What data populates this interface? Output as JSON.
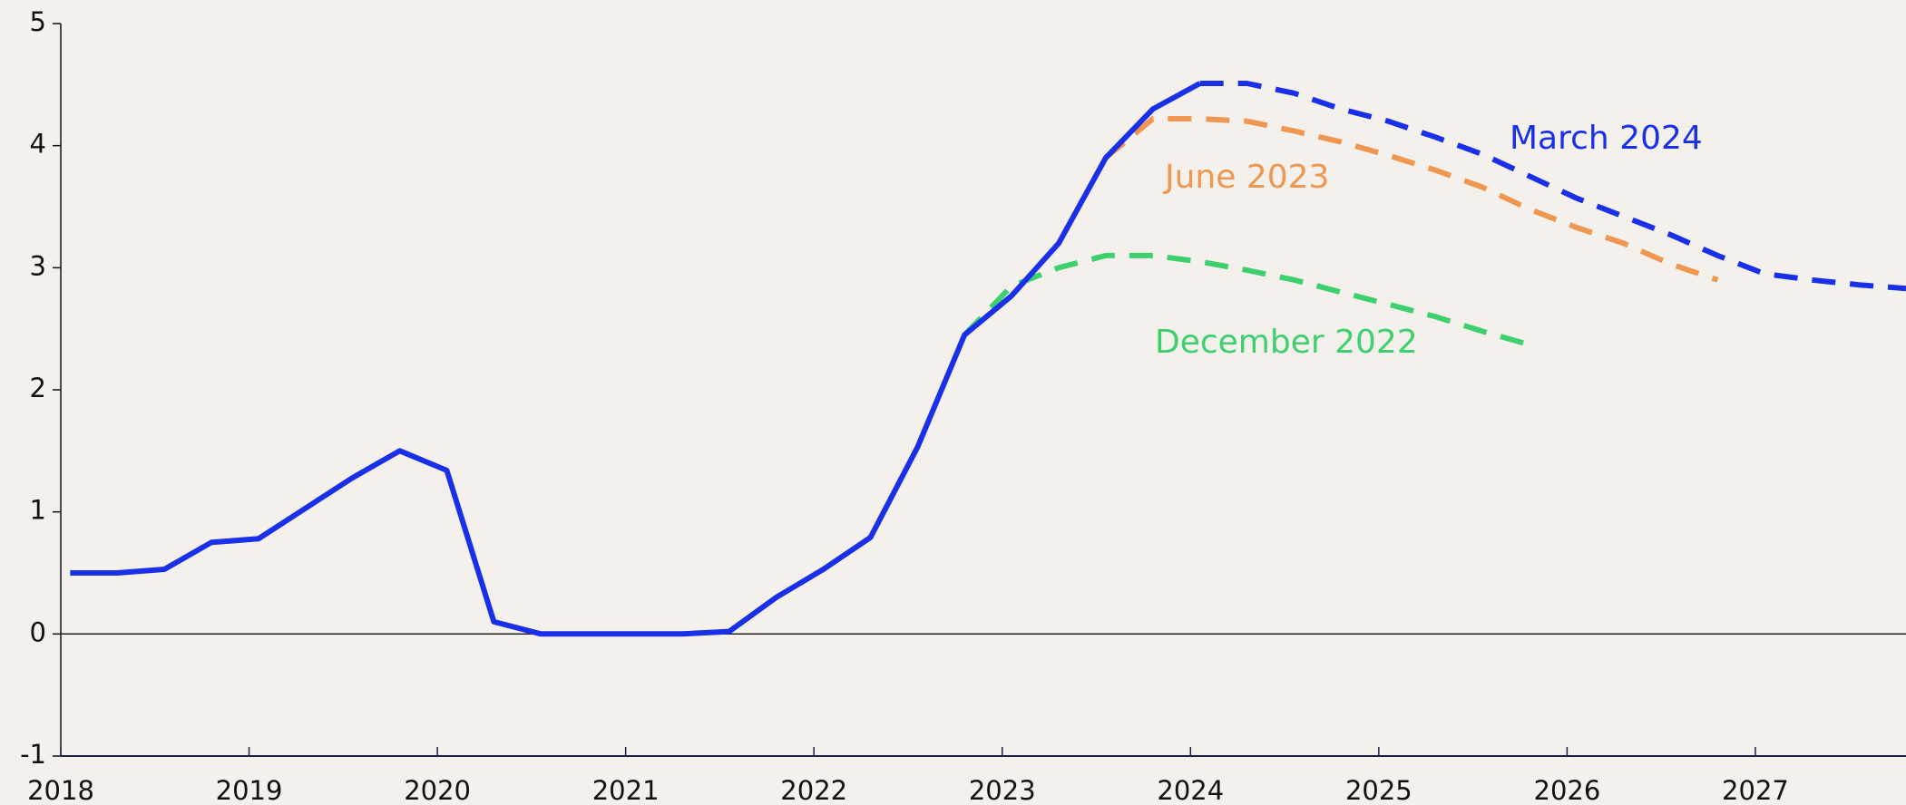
{
  "chart_data": {
    "type": "line",
    "x": [
      2018.05,
      2018.3,
      2018.55,
      2018.8,
      2019.05,
      2019.3,
      2019.55,
      2019.8,
      2020.05,
      2020.3,
      2020.55,
      2020.8,
      2021.05,
      2021.3,
      2021.55,
      2021.8,
      2022.05,
      2022.3,
      2022.55,
      2022.8,
      2023.05,
      2023.3,
      2023.55,
      2023.8,
      2024.05,
      2024.3,
      2024.55,
      2024.8,
      2025.05,
      2025.3,
      2025.55,
      2025.8,
      2026.05,
      2026.3,
      2026.55,
      2026.8,
      2027.05,
      2027.3,
      2027.55,
      2027.8
    ],
    "series": [
      {
        "color": "#1a2fe8",
        "dashed": false,
        "values": [
          0.5,
          0.5,
          0.53,
          0.75,
          0.78,
          1.03,
          1.28,
          1.5,
          1.34,
          0.1,
          0.0,
          0.0,
          0.0,
          0.0,
          0.02,
          0.3,
          0.53,
          0.79,
          1.53,
          2.45,
          2.77,
          3.2,
          3.9,
          4.3,
          4.51,
          null,
          null,
          null,
          null,
          null,
          null,
          null,
          null,
          null,
          null,
          null,
          null,
          null,
          null,
          null
        ]
      },
      {
        "name": "March 2024",
        "color": "#1a2fe8",
        "dashed": true,
        "values": [
          null,
          null,
          null,
          null,
          null,
          null,
          null,
          null,
          null,
          null,
          null,
          null,
          null,
          null,
          null,
          null,
          null,
          null,
          null,
          null,
          null,
          null,
          null,
          null,
          4.51,
          4.51,
          4.43,
          4.3,
          4.2,
          4.07,
          3.93,
          3.75,
          3.57,
          3.42,
          3.27,
          3.1,
          2.95,
          2.9,
          2.86,
          2.83
        ]
      },
      {
        "name": "June 2023",
        "color": "#ef9650",
        "dashed": true,
        "values": [
          null,
          null,
          null,
          null,
          null,
          null,
          null,
          null,
          null,
          null,
          null,
          null,
          null,
          null,
          null,
          null,
          null,
          null,
          null,
          null,
          null,
          null,
          3.9,
          4.22,
          4.22,
          4.2,
          4.12,
          4.03,
          3.92,
          3.8,
          3.66,
          3.48,
          3.33,
          3.2,
          3.03,
          2.9,
          null,
          null,
          null,
          null
        ]
      },
      {
        "name": "December 2022",
        "color": "#3ecf6e",
        "dashed": true,
        "values": [
          null,
          null,
          null,
          null,
          null,
          null,
          null,
          null,
          null,
          null,
          null,
          null,
          null,
          null,
          null,
          null,
          null,
          null,
          null,
          2.45,
          2.85,
          3.0,
          3.1,
          3.1,
          3.05,
          2.98,
          2.9,
          2.8,
          2.7,
          2.6,
          2.48,
          2.37,
          null,
          null,
          null,
          null,
          null,
          null,
          null,
          null
        ]
      }
    ],
    "xlim": [
      2018,
      2027.8
    ],
    "xticks": [
      2018,
      2019,
      2020,
      2021,
      2022,
      2023,
      2024,
      2025,
      2026,
      2027
    ],
    "ylim": [
      -1,
      5
    ],
    "yticks": [
      -1,
      0,
      1,
      2,
      3,
      4,
      5
    ]
  }
}
